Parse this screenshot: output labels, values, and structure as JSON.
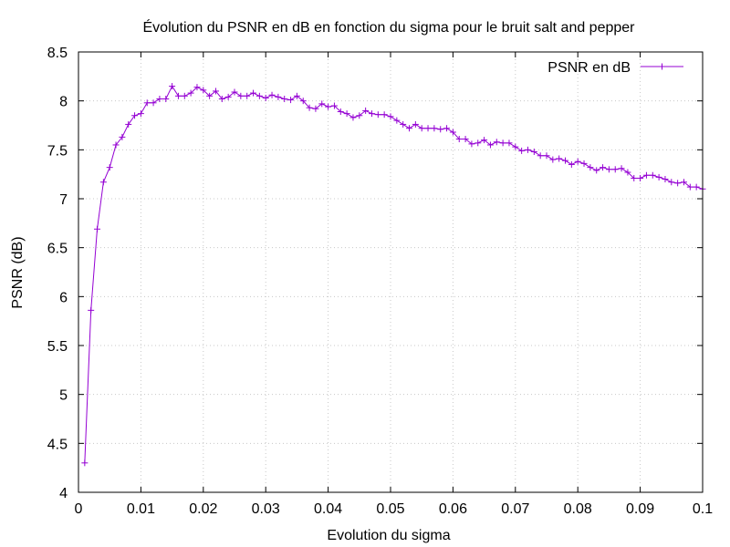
{
  "chart_data": {
    "type": "line",
    "title": "Évolution du PSNR en dB en fonction du sigma pour le bruit salt and pepper",
    "xlabel": "Evolution du sigma",
    "ylabel": "PSNR (dB)",
    "xlim": [
      0,
      0.1
    ],
    "ylim": [
      4,
      8.5
    ],
    "xticks": [
      "0",
      "0.01",
      "0.02",
      "0.03",
      "0.04",
      "0.05",
      "0.06",
      "0.07",
      "0.08",
      "0.09",
      "0.1"
    ],
    "yticks": [
      "4",
      "4.5",
      "5",
      "5.5",
      "6",
      "6.5",
      "7",
      "7.5",
      "8",
      "8.5"
    ],
    "grid": true,
    "legend_position": "top-right",
    "series": [
      {
        "name": "PSNR en dB",
        "color": "#9400d3",
        "marker": "plus",
        "x": [
          0.001,
          0.002,
          0.003,
          0.004,
          0.005,
          0.006,
          0.007,
          0.008,
          0.009,
          0.01,
          0.011,
          0.012,
          0.013,
          0.014,
          0.015,
          0.016,
          0.017,
          0.018,
          0.019,
          0.02,
          0.021,
          0.022,
          0.023,
          0.024,
          0.025,
          0.026,
          0.027,
          0.028,
          0.029,
          0.03,
          0.031,
          0.032,
          0.033,
          0.034,
          0.035,
          0.036,
          0.037,
          0.038,
          0.039,
          0.04,
          0.041,
          0.042,
          0.043,
          0.044,
          0.045,
          0.046,
          0.047,
          0.048,
          0.049,
          0.05,
          0.051,
          0.052,
          0.053,
          0.054,
          0.055,
          0.056,
          0.057,
          0.058,
          0.059,
          0.06,
          0.061,
          0.062,
          0.063,
          0.064,
          0.065,
          0.066,
          0.067,
          0.068,
          0.069,
          0.07,
          0.071,
          0.072,
          0.073,
          0.074,
          0.075,
          0.076,
          0.077,
          0.078,
          0.079,
          0.08,
          0.081,
          0.082,
          0.083,
          0.084,
          0.085,
          0.086,
          0.087,
          0.088,
          0.089,
          0.09,
          0.091,
          0.092,
          0.093,
          0.094,
          0.095,
          0.096,
          0.097,
          0.098,
          0.099,
          0.1
        ],
        "y": [
          4.3,
          5.86,
          6.69,
          7.17,
          7.32,
          7.55,
          7.63,
          7.76,
          7.85,
          7.87,
          7.98,
          7.98,
          8.02,
          8.02,
          8.15,
          8.05,
          8.05,
          8.08,
          8.14,
          8.11,
          8.05,
          8.1,
          8.02,
          8.04,
          8.09,
          8.05,
          8.05,
          8.08,
          8.05,
          8.03,
          8.06,
          8.04,
          8.02,
          8.01,
          8.05,
          8.0,
          7.93,
          7.92,
          7.97,
          7.94,
          7.95,
          7.89,
          7.87,
          7.83,
          7.85,
          7.9,
          7.87,
          7.86,
          7.86,
          7.84,
          7.8,
          7.76,
          7.72,
          7.76,
          7.72,
          7.72,
          7.72,
          7.71,
          7.72,
          7.68,
          7.61,
          7.61,
          7.56,
          7.57,
          7.6,
          7.55,
          7.58,
          7.57,
          7.57,
          7.53,
          7.49,
          7.5,
          7.48,
          7.44,
          7.44,
          7.4,
          7.41,
          7.39,
          7.35,
          7.38,
          7.36,
          7.32,
          7.29,
          7.32,
          7.3,
          7.3,
          7.31,
          7.27,
          7.21,
          7.21,
          7.24,
          7.24,
          7.22,
          7.2,
          7.17,
          7.16,
          7.17,
          7.12,
          7.12,
          7.1
        ]
      }
    ]
  }
}
